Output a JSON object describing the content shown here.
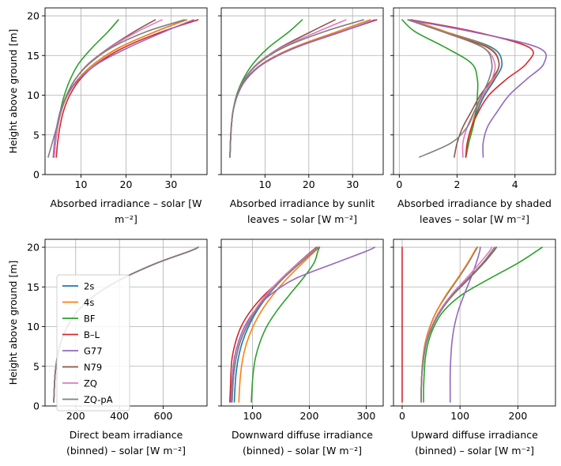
{
  "figure": {
    "y_axis_label": "Height above ground [m]",
    "legend": [
      {
        "name": "2s",
        "color": "#1f77b4"
      },
      {
        "name": "4s",
        "color": "#ff7f0e"
      },
      {
        "name": "BF",
        "color": "#2ca02c"
      },
      {
        "name": "B–L",
        "color": "#d62728"
      },
      {
        "name": "G77",
        "color": "#9467bd"
      },
      {
        "name": "N79",
        "color": "#8c564b"
      },
      {
        "name": "ZQ",
        "color": "#e377c2"
      },
      {
        "name": "ZQ-pA",
        "color": "#7f7f7f"
      }
    ]
  },
  "chart_data": [
    {
      "type": "line",
      "xlabel": [
        "Absorbed irradiance – solar [W",
        "m⁻²]"
      ],
      "ylabel": "Height above ground [m]",
      "xlim": [
        2,
        38
      ],
      "ylim": [
        0,
        21
      ],
      "xticks": [
        10,
        20,
        30
      ],
      "yticks": [
        0,
        5,
        10,
        15,
        20
      ],
      "y": [
        2.2,
        4,
        6,
        8,
        10,
        12,
        14,
        16,
        18,
        19.5
      ],
      "series": [
        {
          "name": "2s",
          "x": [
            4.0,
            4.3,
            4.8,
            5.6,
            7.0,
            9.3,
            13.0,
            18.5,
            26.5,
            33.5
          ]
        },
        {
          "name": "4s",
          "x": [
            4.0,
            4.3,
            4.8,
            5.6,
            7.0,
            9.3,
            13.0,
            18.5,
            26.5,
            33.5
          ]
        },
        {
          "name": "BF",
          "x": [
            4.0,
            4.3,
            4.8,
            5.4,
            6.3,
            7.6,
            9.5,
            12.5,
            16.0,
            18.3
          ]
        },
        {
          "name": "B–L",
          "x": [
            4.5,
            4.8,
            5.3,
            6.1,
            7.5,
            9.8,
            13.6,
            19.5,
            28.0,
            36.0
          ]
        },
        {
          "name": "G77",
          "x": [
            3.8,
            4.1,
            4.6,
            5.4,
            6.9,
            9.5,
            13.8,
            20.5,
            28.5,
            35.0
          ]
        },
        {
          "name": "N79",
          "x": [
            4.0,
            4.3,
            4.8,
            5.6,
            6.8,
            8.7,
            11.7,
            16.3,
            21.8,
            26.5
          ]
        },
        {
          "name": "ZQ",
          "x": [
            4.0,
            4.3,
            4.8,
            5.6,
            6.8,
            8.7,
            11.8,
            16.5,
            22.5,
            28.0
          ]
        },
        {
          "name": "ZQ-pA",
          "x": [
            2.7,
            3.6,
            4.6,
            5.5,
            6.8,
            8.7,
            11.9,
            16.8,
            24.5,
            33.0
          ]
        }
      ]
    },
    {
      "type": "line",
      "xlabel": [
        "Absorbed irradiance by sunlit",
        "leaves – solar [W m⁻²]"
      ],
      "ylabel": "",
      "xlim": [
        0,
        37
      ],
      "ylim": [
        0,
        21
      ],
      "xticks": [
        10,
        20,
        30
      ],
      "yticks": [
        0,
        5,
        10,
        15,
        20
      ],
      "y": [
        2.2,
        4,
        6,
        8,
        10,
        12,
        14,
        16,
        18,
        19.5
      ],
      "series": [
        {
          "name": "2s",
          "x": [
            2.0,
            2.1,
            2.3,
            2.7,
            3.7,
            5.6,
            9.5,
            16.5,
            26.5,
            34.0
          ]
        },
        {
          "name": "4s",
          "x": [
            2.0,
            2.1,
            2.3,
            2.7,
            3.7,
            5.6,
            9.5,
            16.5,
            26.5,
            34.0
          ]
        },
        {
          "name": "BF",
          "x": [
            2.0,
            2.1,
            2.3,
            2.7,
            3.5,
            5.0,
            7.3,
            10.8,
            15.5,
            18.5
          ]
        },
        {
          "name": "B–L",
          "x": [
            2.0,
            2.1,
            2.3,
            2.7,
            3.7,
            5.7,
            9.7,
            17.0,
            27.5,
            35.5
          ]
        },
        {
          "name": "G77",
          "x": [
            2.0,
            2.1,
            2.3,
            2.7,
            3.7,
            5.6,
            9.7,
            17.0,
            27.5,
            35.0
          ]
        },
        {
          "name": "N79",
          "x": [
            2.0,
            2.1,
            2.3,
            2.7,
            3.6,
            5.3,
            8.3,
            13.5,
            20.5,
            26.0
          ]
        },
        {
          "name": "ZQ",
          "x": [
            2.0,
            2.1,
            2.3,
            2.7,
            3.6,
            5.3,
            8.3,
            13.8,
            22.0,
            28.5
          ]
        },
        {
          "name": "ZQ-pA",
          "x": [
            2.0,
            2.1,
            2.3,
            2.7,
            3.6,
            5.3,
            8.5,
            14.2,
            23.5,
            32.5
          ]
        }
      ]
    },
    {
      "type": "line",
      "xlabel": [
        "Absorbed irradiance by shaded",
        "leaves – solar [W m⁻²]"
      ],
      "ylabel": "",
      "xlim": [
        -0.2,
        5.4
      ],
      "ylim": [
        0,
        21
      ],
      "xticks": [
        0,
        2,
        4
      ],
      "yticks": [
        0,
        5,
        10,
        15,
        20
      ],
      "y": [
        2.2,
        4,
        6,
        8,
        10,
        12,
        14,
        16,
        18,
        19.5
      ],
      "series": [
        {
          "name": "2s",
          "x": [
            2.3,
            2.4,
            2.5,
            2.7,
            2.95,
            3.3,
            3.55,
            3.2,
            1.6,
            0.4
          ]
        },
        {
          "name": "4s",
          "x": [
            2.3,
            2.4,
            2.5,
            2.65,
            2.9,
            3.25,
            3.45,
            3.1,
            1.6,
            0.4
          ]
        },
        {
          "name": "BF",
          "x": [
            2.3,
            2.4,
            2.55,
            2.65,
            2.7,
            2.7,
            2.5,
            1.6,
            0.55,
            0.1
          ]
        },
        {
          "name": "B–L",
          "x": [
            2.3,
            2.35,
            2.5,
            2.75,
            3.1,
            3.7,
            4.4,
            4.5,
            2.6,
            0.4
          ]
        },
        {
          "name": "G77",
          "x": [
            2.9,
            2.9,
            3.05,
            3.4,
            3.8,
            4.4,
            5.0,
            4.8,
            2.5,
            0.3
          ]
        },
        {
          "name": "N79",
          "x": [
            1.9,
            2.0,
            2.2,
            2.5,
            2.8,
            3.2,
            3.45,
            3.05,
            1.5,
            0.3
          ]
        },
        {
          "name": "ZQ",
          "x": [
            2.2,
            2.2,
            2.35,
            2.6,
            2.9,
            3.2,
            3.3,
            2.9,
            1.5,
            0.3
          ]
        },
        {
          "name": "ZQ-pA",
          "x": [
            0.7,
            1.8,
            2.35,
            2.6,
            2.85,
            3.1,
            3.2,
            2.9,
            1.5,
            0.3
          ]
        }
      ]
    },
    {
      "type": "line",
      "xlabel": [
        "Direct beam irradiance",
        "(binned) – solar [W m⁻²]"
      ],
      "ylabel": "Height above ground [m]",
      "xlim": [
        60,
        800
      ],
      "ylim": [
        0,
        21
      ],
      "xticks": [
        200,
        400,
        600
      ],
      "yticks": [
        0,
        5,
        10,
        15,
        20
      ],
      "y": [
        0.5,
        2,
        4,
        6,
        8,
        10,
        12,
        14,
        16,
        18,
        19.5,
        20
      ],
      "series": [
        {
          "name": "2s",
          "x": [
            100,
            102,
            106,
            115,
            132,
            162,
            210,
            290,
            410,
            570,
            720,
            760
          ]
        },
        {
          "name": "4s",
          "x": [
            100,
            102,
            106,
            115,
            132,
            162,
            210,
            290,
            410,
            570,
            720,
            760
          ]
        },
        {
          "name": "BF",
          "x": [
            100,
            102,
            106,
            115,
            132,
            162,
            210,
            290,
            410,
            570,
            720,
            760
          ]
        },
        {
          "name": "B–L",
          "x": [
            100,
            102,
            106,
            115,
            132,
            162,
            210,
            290,
            410,
            570,
            720,
            760
          ]
        },
        {
          "name": "G77",
          "x": [
            100,
            102,
            106,
            115,
            132,
            162,
            210,
            290,
            410,
            570,
            720,
            760
          ]
        },
        {
          "name": "N79",
          "x": [
            100,
            102,
            106,
            115,
            132,
            162,
            210,
            290,
            410,
            570,
            720,
            760
          ]
        },
        {
          "name": "ZQ",
          "x": [
            100,
            102,
            106,
            115,
            132,
            162,
            210,
            290,
            410,
            570,
            720,
            760
          ]
        },
        {
          "name": "ZQ-pA",
          "x": [
            100,
            102,
            106,
            115,
            132,
            162,
            210,
            290,
            410,
            570,
            720,
            760
          ]
        }
      ]
    },
    {
      "type": "line",
      "xlabel": [
        "Downward diffuse irradiance",
        "(binned) – solar [W m⁻²]"
      ],
      "ylabel": "",
      "xlim": [
        45,
        330
      ],
      "ylim": [
        0,
        21
      ],
      "xticks": [
        100,
        200,
        300
      ],
      "yticks": [
        0,
        5,
        10,
        15,
        20
      ],
      "y": [
        0.5,
        2,
        4,
        6,
        8,
        10,
        12,
        14,
        16,
        18,
        19.5,
        20
      ],
      "series": [
        {
          "name": "2s",
          "x": [
            68,
            69,
            71,
            75,
            82,
            93,
            108,
            128,
            153,
            182,
            205,
            215
          ]
        },
        {
          "name": "4s",
          "x": [
            76,
            77,
            79,
            83,
            90,
            101,
            116,
            136,
            160,
            188,
            210,
            218
          ]
        },
        {
          "name": "BF",
          "x": [
            98,
            99,
            101,
            105,
            113,
            125,
            143,
            165,
            188,
            208,
            215,
            218
          ]
        },
        {
          "name": "B–L",
          "x": [
            60,
            61,
            62,
            64,
            70,
            80,
            97,
            121,
            152,
            183,
            205,
            213
          ]
        },
        {
          "name": "G77",
          "x": [
            62,
            63,
            65,
            68,
            75,
            86,
            104,
            131,
            174,
            245,
            300,
            315
          ]
        },
        {
          "name": "N79",
          "x": [
            64,
            65,
            67,
            71,
            78,
            89,
            104,
            124,
            150,
            180,
            204,
            213
          ]
        },
        {
          "name": "ZQ",
          "x": [
            64,
            65,
            67,
            71,
            78,
            89,
            104,
            124,
            150,
            181,
            206,
            216
          ]
        },
        {
          "name": "ZQ-pA",
          "x": [
            64,
            65,
            67,
            71,
            78,
            90,
            106,
            127,
            153,
            184,
            208,
            217
          ]
        }
      ]
    },
    {
      "type": "line",
      "xlabel": [
        "Upward diffuse irradiance",
        "(binned) – solar [W m⁻²]"
      ],
      "ylabel": "",
      "xlim": [
        -15,
        265
      ],
      "ylim": [
        0,
        21
      ],
      "xticks": [
        0,
        100,
        200
      ],
      "yticks": [
        0,
        5,
        10,
        15,
        20
      ],
      "y": [
        0.5,
        2,
        4,
        6,
        8,
        10,
        12,
        14,
        16,
        18,
        19.5,
        20
      ],
      "series": [
        {
          "name": "2s",
          "x": [
            33,
            33,
            34,
            36,
            40,
            48,
            60,
            77,
            96,
            114,
            126,
            130
          ]
        },
        {
          "name": "4s",
          "x": [
            33,
            33,
            34,
            36,
            40,
            48,
            60,
            76,
            95,
            113,
            125,
            129
          ]
        },
        {
          "name": "BF",
          "x": [
            37,
            37,
            38,
            40,
            45,
            55,
            72,
            103,
            150,
            200,
            232,
            242
          ]
        },
        {
          "name": "B–L",
          "x": [
            0,
            0,
            0,
            0,
            0,
            0,
            0,
            0,
            0,
            0,
            0,
            0
          ]
        },
        {
          "name": "G77",
          "x": [
            83,
            83,
            83,
            84,
            86,
            90,
            97,
            107,
            118,
            128,
            134,
            135
          ]
        },
        {
          "name": "N79",
          "x": [
            33,
            33,
            34,
            37,
            42,
            52,
            67,
            88,
            115,
            141,
            158,
            163
          ]
        },
        {
          "name": "ZQ",
          "x": [
            33,
            33,
            34,
            37,
            41,
            51,
            65,
            85,
            110,
            134,
            151,
            155
          ]
        },
        {
          "name": "ZQ-pA",
          "x": [
            33,
            33,
            34,
            37,
            42,
            52,
            67,
            87,
            113,
            139,
            155,
            160
          ]
        }
      ]
    }
  ]
}
